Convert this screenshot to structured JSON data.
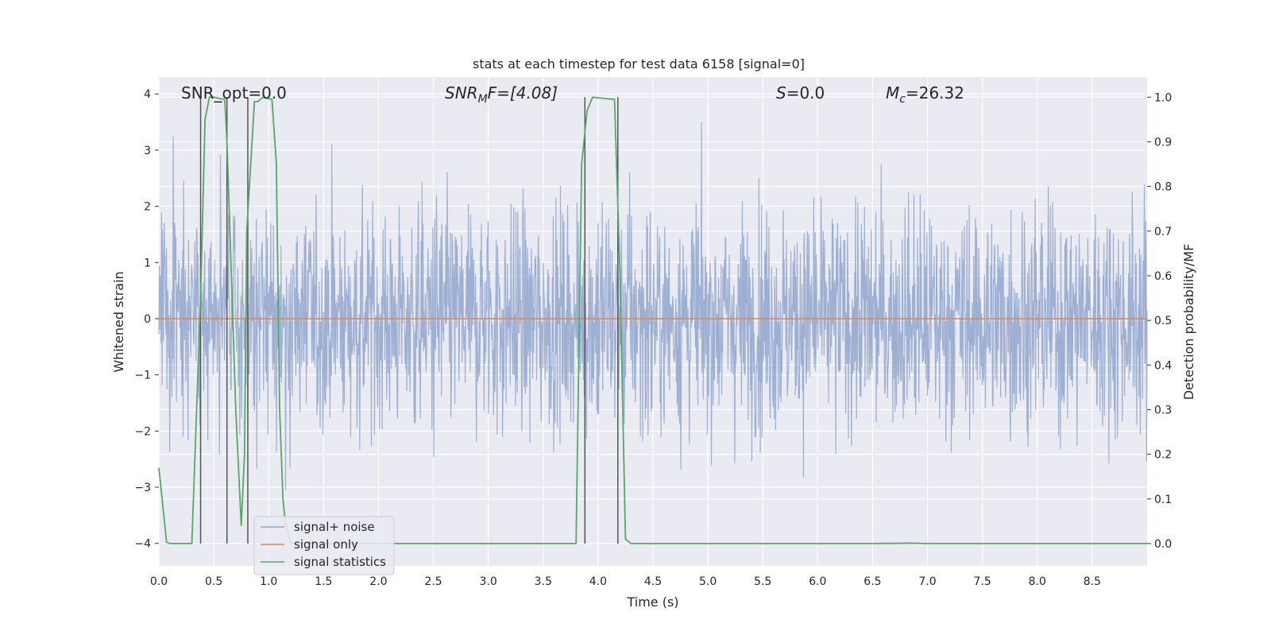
{
  "chart_data": {
    "type": "line",
    "title": "stats at each timestep for test data 6158 [signal=0]",
    "xlabel": "Time (s)",
    "ylabel_left": "Whitened strain",
    "ylabel_right": "Detection probability/MF",
    "xlim": [
      0.0,
      9.0
    ],
    "ylim_left": [
      -4.4,
      4.3
    ],
    "ylim_right": [
      -0.05,
      1.045
    ],
    "x_ticks": [
      "0.0",
      "0.5",
      "1.0",
      "1.5",
      "2.0",
      "2.5",
      "3.0",
      "3.5",
      "4.0",
      "4.5",
      "5.0",
      "5.5",
      "6.0",
      "6.5",
      "7.0",
      "7.5",
      "8.0",
      "8.5"
    ],
    "y_ticks_left": [
      "4",
      "3",
      "2",
      "1",
      "0",
      "−1",
      "−2",
      "−3",
      "−4"
    ],
    "y_ticks_right": [
      "1.0",
      "0.9",
      "0.8",
      "0.7",
      "0.6",
      "0.5",
      "0.4",
      "0.3",
      "0.2",
      "0.1",
      "0.0"
    ],
    "grid": true,
    "legend_position": "lower-left",
    "annotations": {
      "snr_opt": "SNR_opt=0.0",
      "snr_mf_main": "SNR",
      "snr_mf_sub": "M",
      "snr_mf_rest": "F=[4.08]",
      "s_main": "S",
      "s_rest": "=0.0",
      "mc_main": "M",
      "mc_sub": "c",
      "mc_rest": "=26.32"
    },
    "series": [
      {
        "name": "signal+ noise",
        "color": "#8fa4cc",
        "axis": "left",
        "noise_std": 1.0,
        "peak_min": -4.0,
        "peak_max": 3.9
      },
      {
        "name": "signal only",
        "color": "#dd8452",
        "axis": "left",
        "x": [
          0.0,
          9.0
        ],
        "y": [
          0.0,
          0.0
        ]
      },
      {
        "name": "signal statistics",
        "color": "#55a868",
        "axis": "right",
        "x": [
          0.0,
          0.07,
          0.1,
          0.3,
          0.38,
          0.42,
          0.46,
          0.5,
          0.6,
          0.62,
          0.7,
          0.75,
          0.78,
          0.8,
          0.87,
          0.9,
          0.95,
          1.03,
          1.07,
          1.1,
          1.13,
          1.15,
          1.2,
          1.5,
          3.5,
          3.8,
          3.85,
          3.9,
          3.95,
          4.15,
          4.2,
          4.25,
          4.3,
          4.5,
          6.5,
          6.85,
          7.0,
          9.0
        ],
        "y": [
          0.17,
          0.003,
          0.0,
          0.0,
          0.55,
          0.95,
          1.0,
          1.0,
          0.995,
          0.9,
          0.3,
          0.04,
          0.2,
          0.7,
          0.99,
          0.99,
          1.0,
          0.995,
          0.85,
          0.3,
          0.1,
          0.05,
          0.0,
          0.0,
          0.0,
          0.0,
          0.85,
          0.97,
          1.0,
          0.995,
          0.6,
          0.01,
          0.0,
          0.0,
          0.0,
          0.001,
          0.0,
          0.0
        ]
      }
    ],
    "vlines_x": [
      0.38,
      0.62,
      0.81,
      3.88,
      4.18
    ],
    "vline_color": "#555555"
  }
}
